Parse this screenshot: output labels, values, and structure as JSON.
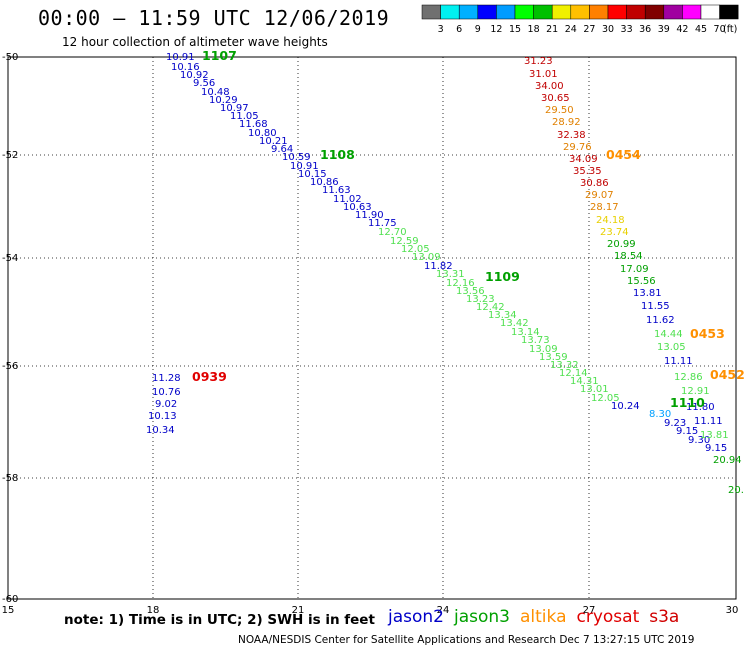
{
  "header": {
    "title": "00:00 – 11:59 UTC 12/06/2019",
    "subtitle": "12 hour collection of altimeter wave heights"
  },
  "colorbar": {
    "colors": [
      "#707070",
      "#00f0f0",
      "#00b0ff",
      "#0000ff",
      "#009cff",
      "#00ff00",
      "#00c000",
      "#f0f000",
      "#ffc000",
      "#ff8000",
      "#ff0000",
      "#c00000",
      "#800000",
      "#a000a0",
      "#ff00ff",
      "#ffffff",
      "#000000"
    ],
    "ticks": [
      "3",
      "6",
      "9",
      "12",
      "15",
      "18",
      "21",
      "24",
      "27",
      "30",
      "33",
      "36",
      "39",
      "42",
      "45",
      "70",
      "(ft)"
    ]
  },
  "axes": {
    "x_ticks": [
      "15",
      "18",
      "21",
      "24",
      "27",
      "30"
    ],
    "y_ticks": [
      "-50",
      "-52",
      "-54",
      "-56",
      "-58",
      "-60"
    ]
  },
  "colors": {
    "jason2": "#0000c8",
    "jason3": "#00a000",
    "altika": "#ff9000",
    "cryosat": "#e00000",
    "s3a": "#d00000",
    "light_green": "#50e050",
    "dark_red": "#c00000",
    "orange": "#e08000",
    "yellow": "#e8d000",
    "blue": "#0000c8",
    "cyan": "#00a0ff"
  },
  "passes": [
    {
      "label": "1107",
      "color": "#00a000"
    },
    {
      "label": "1108",
      "color": "#00a000"
    },
    {
      "label": "1109",
      "color": "#00a000"
    },
    {
      "label": "1110",
      "color": "#00a000"
    },
    {
      "label": "0454",
      "color": "#ff9000"
    },
    {
      "label": "0453",
      "color": "#ff9000"
    },
    {
      "label": "0452",
      "color": "#ff9000"
    },
    {
      "label": "0939",
      "color": "#e00000"
    }
  ],
  "track_labels": [
    {
      "v": "10.91",
      "c": "#0000c8"
    },
    {
      "v": "10.16",
      "c": "#0000c8"
    },
    {
      "v": "10.92",
      "c": "#0000c8"
    },
    {
      "v": "9.56",
      "c": "#0000c8"
    },
    {
      "v": "10.48",
      "c": "#0000c8"
    },
    {
      "v": "10.29",
      "c": "#0000c8"
    },
    {
      "v": "10.97",
      "c": "#0000c8"
    },
    {
      "v": "11.05",
      "c": "#0000c8"
    },
    {
      "v": "11.68",
      "c": "#0000c8"
    },
    {
      "v": "10.80",
      "c": "#0000c8"
    },
    {
      "v": "10.21",
      "c": "#0000c8"
    },
    {
      "v": "9.64",
      "c": "#0000c8"
    },
    {
      "v": "10.59",
      "c": "#0000c8"
    },
    {
      "v": "10.91",
      "c": "#0000c8"
    },
    {
      "v": "10.15",
      "c": "#0000c8"
    },
    {
      "v": "10.86",
      "c": "#0000c8"
    },
    {
      "v": "11.63",
      "c": "#0000c8"
    },
    {
      "v": "11.02",
      "c": "#0000c8"
    },
    {
      "v": "10.63",
      "c": "#0000c8"
    },
    {
      "v": "11.90",
      "c": "#0000c8"
    },
    {
      "v": "11.75",
      "c": "#0000c8"
    },
    {
      "v": "12.70",
      "c": "#50e050"
    },
    {
      "v": "12.59",
      "c": "#50e050"
    },
    {
      "v": "12.05",
      "c": "#50e050"
    },
    {
      "v": "13.09",
      "c": "#50e050"
    },
    {
      "v": "11.82",
      "c": "#0000c8"
    },
    {
      "v": "13.31",
      "c": "#50e050"
    },
    {
      "v": "12.16",
      "c": "#50e050"
    },
    {
      "v": "13.56",
      "c": "#50e050"
    },
    {
      "v": "13.23",
      "c": "#50e050"
    },
    {
      "v": "12.42",
      "c": "#50e050"
    },
    {
      "v": "13.34",
      "c": "#50e050"
    },
    {
      "v": "13.42",
      "c": "#50e050"
    },
    {
      "v": "13.14",
      "c": "#50e050"
    },
    {
      "v": "13.73",
      "c": "#50e050"
    },
    {
      "v": "13.09",
      "c": "#50e050"
    },
    {
      "v": "13.59",
      "c": "#50e050"
    },
    {
      "v": "13.32",
      "c": "#50e050"
    },
    {
      "v": "12.14",
      "c": "#50e050"
    },
    {
      "v": "14.31",
      "c": "#50e050"
    },
    {
      "v": "13.01",
      "c": "#50e050"
    },
    {
      "v": "12.05",
      "c": "#50e050"
    },
    {
      "v": "10.24",
      "c": "#0000c8"
    },
    {
      "v": "8.30",
      "c": "#00a0ff"
    },
    {
      "v": "9.23",
      "c": "#0000c8"
    },
    {
      "v": "9.15",
      "c": "#0000c8"
    },
    {
      "v": "9.30",
      "c": "#0000c8"
    },
    {
      "v": "9.15",
      "c": "#0000c8"
    },
    {
      "v": "31.23",
      "c": "#c00000"
    },
    {
      "v": "31.01",
      "c": "#c00000"
    },
    {
      "v": "34.00",
      "c": "#c00000"
    },
    {
      "v": "30.65",
      "c": "#c00000"
    },
    {
      "v": "29.50",
      "c": "#e08000"
    },
    {
      "v": "28.92",
      "c": "#e08000"
    },
    {
      "v": "32.38",
      "c": "#c00000"
    },
    {
      "v": "29.76",
      "c": "#e08000"
    },
    {
      "v": "34.09",
      "c": "#c00000"
    },
    {
      "v": "35.35",
      "c": "#c00000"
    },
    {
      "v": "30.86",
      "c": "#c00000"
    },
    {
      "v": "29.07",
      "c": "#e08000"
    },
    {
      "v": "28.17",
      "c": "#e08000"
    },
    {
      "v": "24.18",
      "c": "#e8d000"
    },
    {
      "v": "23.74",
      "c": "#e8d000"
    },
    {
      "v": "20.99",
      "c": "#00a000"
    },
    {
      "v": "18.54",
      "c": "#00a000"
    },
    {
      "v": "17.09",
      "c": "#00a000"
    },
    {
      "v": "15.56",
      "c": "#00a000"
    },
    {
      "v": "13.81",
      "c": "#0000c8"
    },
    {
      "v": "11.55",
      "c": "#0000c8"
    },
    {
      "v": "11.62",
      "c": "#0000c8"
    },
    {
      "v": "14.44",
      "c": "#50e050"
    },
    {
      "v": "13.05",
      "c": "#50e050"
    },
    {
      "v": "11.11",
      "c": "#0000c8"
    },
    {
      "v": "12.86",
      "c": "#50e050"
    },
    {
      "v": "12.91",
      "c": "#50e050"
    },
    {
      "v": "11.80",
      "c": "#0000c8"
    },
    {
      "v": "11.11",
      "c": "#0000c8"
    },
    {
      "v": "13.81",
      "c": "#50e050"
    },
    {
      "v": "20.94",
      "c": "#00a000"
    },
    {
      "v": "20.",
      "c": "#00a000"
    },
    {
      "v": "11.28",
      "c": "#0000c8"
    },
    {
      "v": "10.76",
      "c": "#0000c8"
    },
    {
      "v": "9.02",
      "c": "#0000c8"
    },
    {
      "v": "10.13",
      "c": "#0000c8"
    },
    {
      "v": "10.34",
      "c": "#0000c8"
    }
  ],
  "footer": {
    "note": "note: 1) Time is in UTC; 2) SWH is in feet",
    "legend": [
      {
        "name": "jason2",
        "color": "#0000c8"
      },
      {
        "name": "jason3",
        "color": "#00a000"
      },
      {
        "name": "altika",
        "color": "#ff9000"
      },
      {
        "name": "cryosat",
        "color": "#e00000"
      },
      {
        "name": "s3a",
        "color": "#d00000"
      }
    ],
    "credit": "NOAA/NESDIS Center for Satellite Applications and Research     Dec  7 13:27:15 UTC 2019"
  }
}
